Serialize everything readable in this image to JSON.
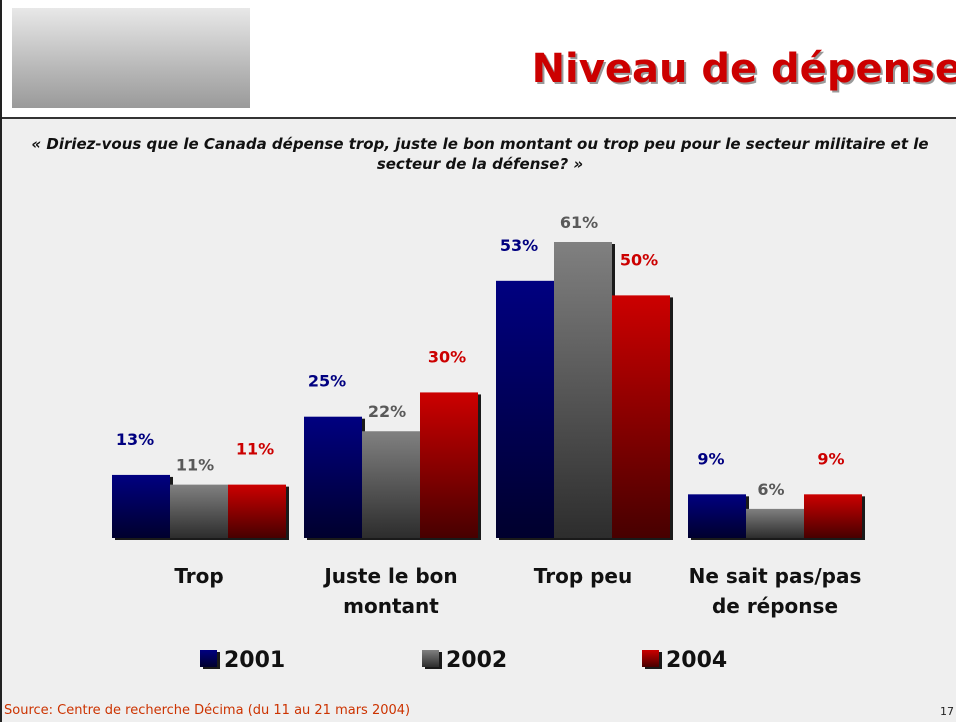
{
  "title": "Niveau de dépense",
  "question": "« Diriez-vous que le Canada dépense trop, juste le bon montant ou trop peu pour le secteur militaire et le secteur de la défense? »",
  "source": "Source: Centre de recherche Décima (du 11 au 21 mars 2004)",
  "page_number": 17,
  "chart_data": {
    "type": "bar",
    "categories": [
      "Trop",
      "Juste le bon montant",
      "Trop peu",
      "Ne sait pas/pas de réponse"
    ],
    "series": [
      {
        "name": "2001",
        "color": "#000080",
        "values": [
          13,
          25,
          53,
          9
        ],
        "value_labels": [
          "13%",
          "25%",
          "53%",
          "9%"
        ]
      },
      {
        "name": "2002",
        "color": "#808080",
        "values": [
          11,
          22,
          61,
          6
        ],
        "value_labels": [
          "11%",
          "22%",
          "61%",
          "6%"
        ]
      },
      {
        "name": "2004",
        "color": "#cc0000",
        "values": [
          11,
          30,
          50,
          9
        ],
        "value_labels": [
          "11%",
          "30%",
          "50%",
          "9%"
        ]
      }
    ]
  }
}
